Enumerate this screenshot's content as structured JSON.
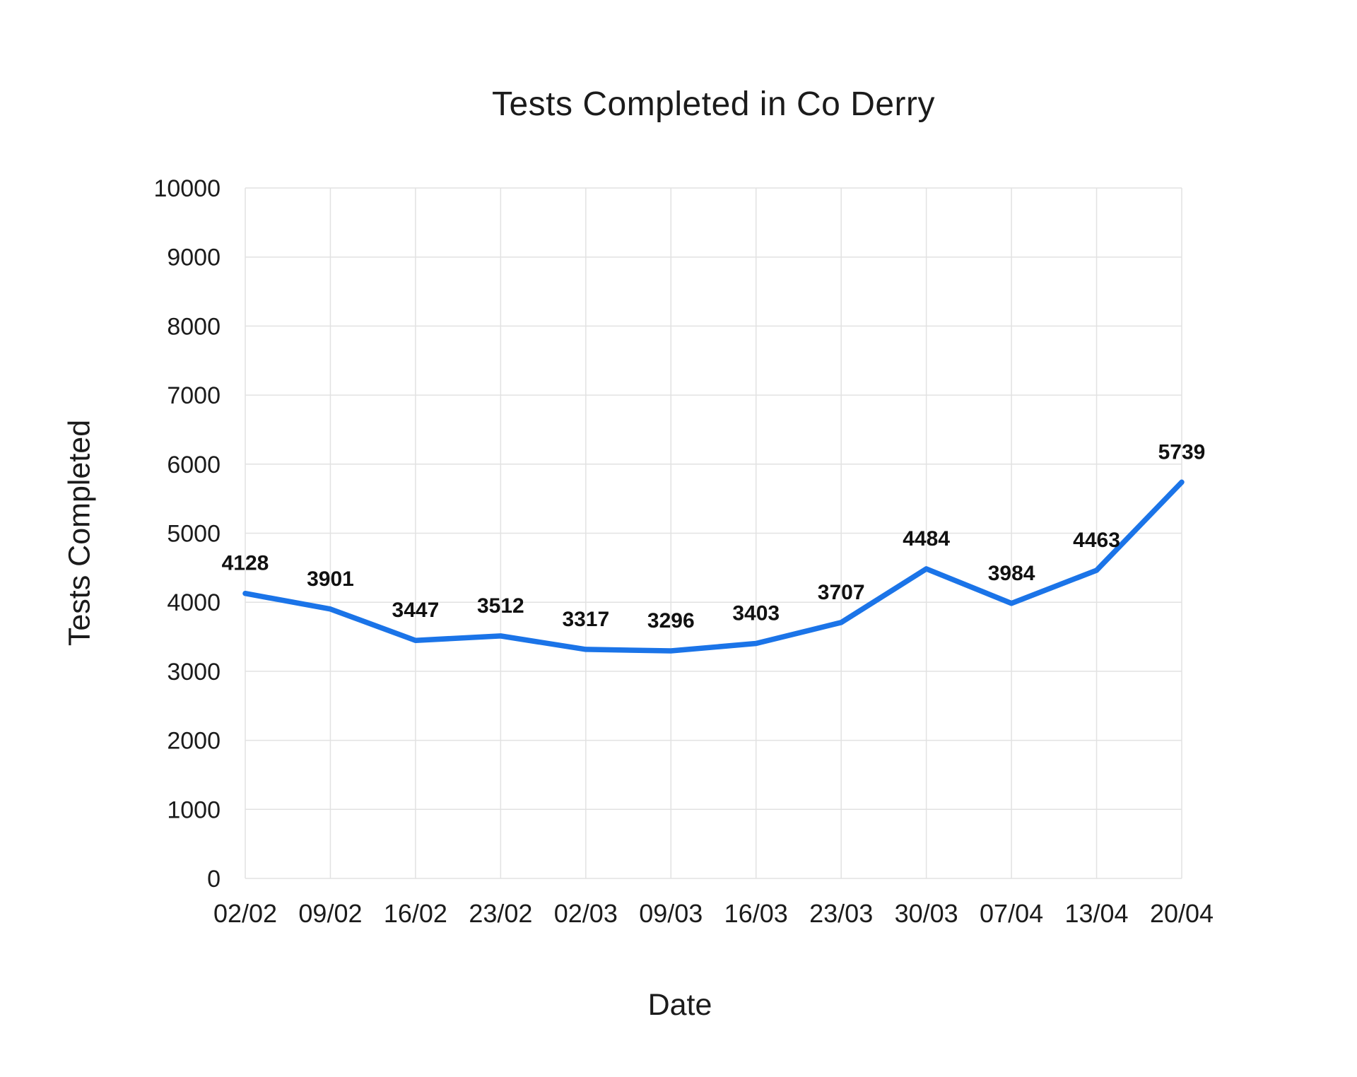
{
  "page": {
    "title": "Tests Completed in Co Derry"
  },
  "chart_data": {
    "type": "line",
    "title": "Tests Completed in Co Derry",
    "xlabel": "Date",
    "ylabel": "Tests Completed",
    "categories": [
      "02/02",
      "09/02",
      "16/02",
      "23/02",
      "02/03",
      "09/03",
      "16/03",
      "23/03",
      "30/03",
      "07/04",
      "13/04",
      "20/04"
    ],
    "values": [
      4128,
      3901,
      3447,
      3512,
      3317,
      3296,
      3403,
      3707,
      4484,
      3984,
      4463,
      5739
    ],
    "ylim": [
      0,
      10000
    ],
    "y_tick_step": 1000,
    "y_tick_labels": [
      "0",
      "1000",
      "2000",
      "3000",
      "4000",
      "5000",
      "6000",
      "7000",
      "8000",
      "9000",
      "10000"
    ],
    "grid": true,
    "legend": "none",
    "data_labels": true
  },
  "style": {
    "line_color": "#1b74e8",
    "grid_color": "#e2e2e2",
    "text_color": "#1b1b1b",
    "background": "#ffffff"
  }
}
